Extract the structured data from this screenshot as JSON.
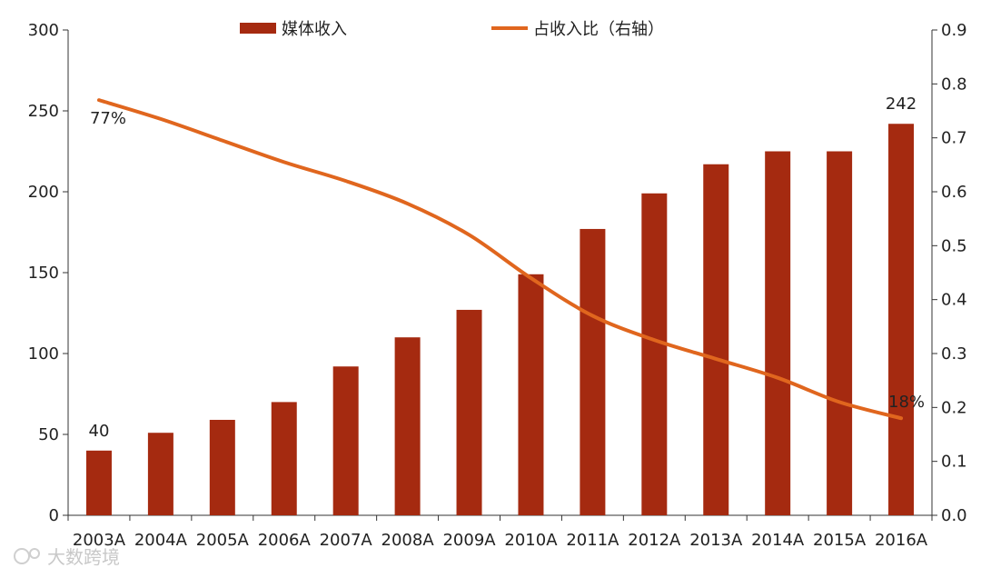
{
  "chart_data": {
    "type": "bar",
    "categories": [
      "2003A",
      "2004A",
      "2005A",
      "2006A",
      "2007A",
      "2008A",
      "2009A",
      "2010A",
      "2011A",
      "2012A",
      "2013A",
      "2014A",
      "2015A",
      "2016A"
    ],
    "series": [
      {
        "name": "媒体收入",
        "type": "bar",
        "axis": "left",
        "color": "#a52a10",
        "values": [
          40,
          51,
          59,
          70,
          92,
          110,
          127,
          149,
          177,
          199,
          217,
          225,
          225,
          242
        ]
      },
      {
        "name": "占收入比（右轴）",
        "type": "line",
        "axis": "right",
        "color": "#e0661e",
        "values": [
          0.77,
          0.735,
          0.695,
          0.655,
          0.62,
          0.578,
          0.52,
          0.44,
          0.37,
          0.325,
          0.29,
          0.255,
          0.21,
          0.18
        ]
      }
    ],
    "y_left": {
      "min": 0,
      "max": 300,
      "ticks": [
        "0",
        "50",
        "100",
        "150",
        "200",
        "250",
        "300"
      ]
    },
    "y_right": {
      "min": 0,
      "max": 0.9,
      "ticks": [
        "0.0",
        "0.1",
        "0.2",
        "0.3",
        "0.4",
        "0.5",
        "0.6",
        "0.7",
        "0.8",
        "0.9"
      ]
    },
    "data_labels": {
      "bar_first": "40",
      "bar_last": "242",
      "line_first": "77%",
      "line_last": "18%"
    },
    "legend": [
      "媒体收入",
      "占收入比（右轴）"
    ],
    "legend_position": "top-center"
  },
  "watermark": "大数跨境"
}
